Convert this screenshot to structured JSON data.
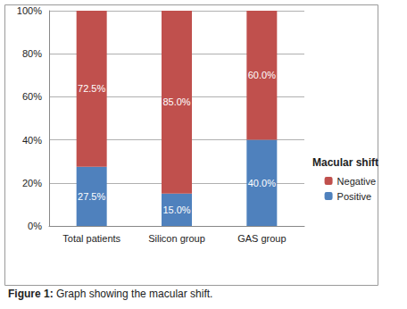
{
  "chart_data": {
    "type": "bar",
    "stacked": true,
    "data_labels": true,
    "grid": true,
    "legend": "right",
    "title": "Figure 1: Graph showing the macular shift.",
    "legend_title": "Macular shift",
    "categories": [
      "Total patients",
      "Silicon group",
      "GAS group"
    ],
    "series": [
      {
        "name": "Positive",
        "color": "#4f81bd",
        "values": [
          27.5,
          15.0,
          40.0
        ],
        "value_labels": [
          "27.5%",
          "15.0%",
          "40.0%"
        ]
      },
      {
        "name": "Negative",
        "color": "#c0504d",
        "values": [
          72.5,
          85.0,
          60.0
        ],
        "value_labels": [
          "72.5%",
          "85.0%",
          "60.0%"
        ]
      }
    ],
    "ylim": [
      0,
      100
    ],
    "yticks": [
      {
        "value": 0,
        "label": "0%"
      },
      {
        "value": 20,
        "label": "20%"
      },
      {
        "value": 40,
        "label": "40%"
      },
      {
        "value": 60,
        "label": "60%"
      },
      {
        "value": 80,
        "label": "80%"
      },
      {
        "value": 100,
        "label": "100%"
      }
    ]
  }
}
